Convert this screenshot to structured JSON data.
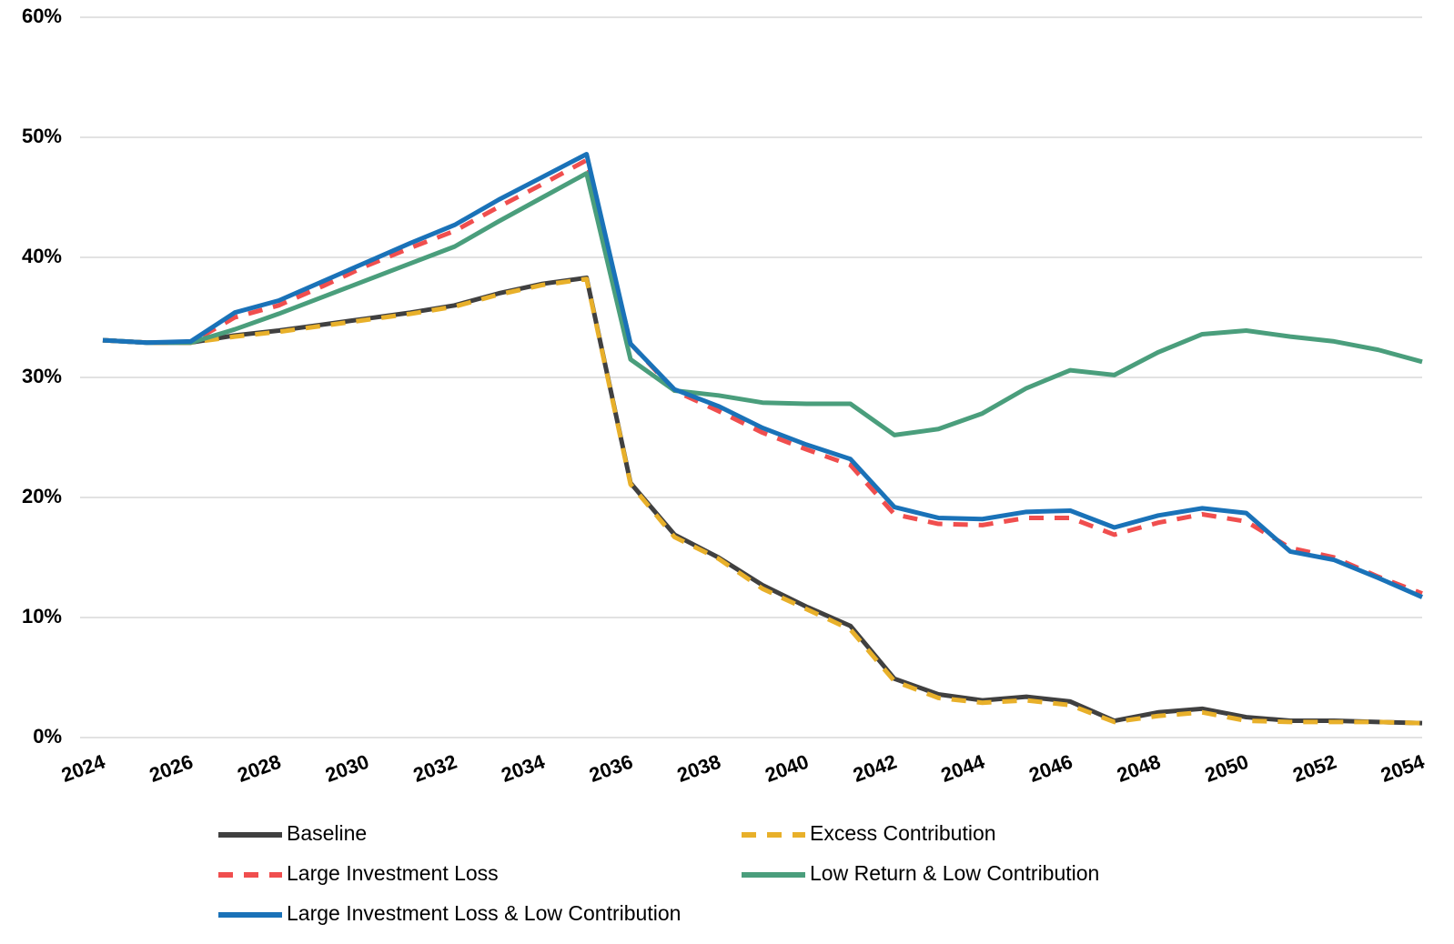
{
  "chart_data": {
    "type": "line",
    "x": [
      2024,
      2025,
      2026,
      2027,
      2028,
      2029,
      2030,
      2031,
      2032,
      2033,
      2034,
      2035,
      2036,
      2037,
      2038,
      2039,
      2040,
      2041,
      2042,
      2043,
      2044,
      2045,
      2046,
      2047,
      2048,
      2049,
      2050,
      2051,
      2052,
      2053,
      2054
    ],
    "xlim": [
      2024,
      2054
    ],
    "xticks": [
      2024,
      2026,
      2028,
      2030,
      2032,
      2034,
      2036,
      2038,
      2040,
      2042,
      2044,
      2046,
      2048,
      2050,
      2052,
      2054
    ],
    "ylim": [
      0,
      60
    ],
    "yticks": [
      {
        "value": 0,
        "label": "0%"
      },
      {
        "value": 10,
        "label": "10%"
      },
      {
        "value": 20,
        "label": "20%"
      },
      {
        "value": 30,
        "label": "30%"
      },
      {
        "value": 40,
        "label": "40%"
      },
      {
        "value": 50,
        "label": "50%"
      },
      {
        "value": 60,
        "label": "60%"
      }
    ],
    "grid": true,
    "series": [
      {
        "name": "Baseline",
        "color": "#404040",
        "dashed": false,
        "values": [
          33.1,
          32.9,
          32.9,
          33.5,
          33.9,
          34.4,
          34.9,
          35.4,
          36.0,
          37.0,
          37.8,
          38.3,
          21.2,
          16.9,
          15.0,
          12.7,
          10.9,
          9.3,
          4.9,
          3.6,
          3.1,
          3.4,
          3.0,
          1.4,
          2.1,
          2.4,
          1.7,
          1.4,
          1.4,
          1.3,
          1.2
        ]
      },
      {
        "name": "Excess Contribution",
        "color": "#e8b02a",
        "dashed": true,
        "values": [
          33.1,
          32.9,
          32.9,
          33.4,
          33.8,
          34.3,
          34.8,
          35.3,
          35.9,
          36.9,
          37.7,
          38.2,
          21.1,
          16.7,
          14.9,
          12.4,
          10.7,
          9.0,
          4.7,
          3.3,
          2.9,
          3.1,
          2.7,
          1.3,
          1.8,
          2.1,
          1.4,
          1.3,
          1.3,
          1.3,
          1.2
        ]
      },
      {
        "name": "Large Investment Loss",
        "color": "#f04e4e",
        "dashed": true,
        "values": [
          33.1,
          32.9,
          32.9,
          35.0,
          36.0,
          37.6,
          39.3,
          40.8,
          42.2,
          44.2,
          46.1,
          48.1,
          32.8,
          28.9,
          27.2,
          25.4,
          24.0,
          22.7,
          18.6,
          17.8,
          17.7,
          18.3,
          18.3,
          16.9,
          17.9,
          18.6,
          18.0,
          15.8,
          15.0,
          13.4,
          12.0
        ]
      },
      {
        "name": "Low Return & Low Contribution",
        "color": "#4a9e7c",
        "dashed": false,
        "values": [
          33.1,
          32.9,
          32.9,
          34.0,
          35.3,
          36.7,
          38.1,
          39.5,
          40.9,
          43.0,
          45.0,
          47.0,
          31.5,
          28.9,
          28.5,
          27.9,
          27.8,
          27.8,
          25.2,
          25.7,
          27.0,
          29.1,
          30.6,
          30.2,
          32.1,
          33.6,
          33.9,
          33.4,
          33.0,
          32.3,
          31.3
        ]
      },
      {
        "name": "Large Investment Loss & Low Contribution",
        "color": "#1a72b8",
        "dashed": false,
        "values": [
          33.1,
          32.9,
          33.0,
          35.4,
          36.4,
          38.0,
          39.6,
          41.2,
          42.7,
          44.8,
          46.7,
          48.6,
          32.8,
          29.0,
          27.6,
          25.8,
          24.4,
          23.2,
          19.2,
          18.3,
          18.2,
          18.8,
          18.9,
          17.5,
          18.5,
          19.1,
          18.7,
          15.5,
          14.8,
          13.3,
          11.7
        ]
      }
    ]
  }
}
